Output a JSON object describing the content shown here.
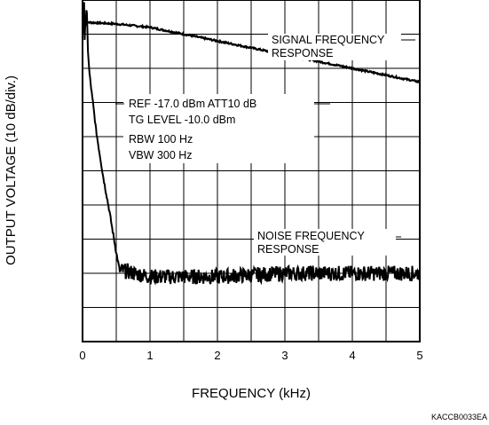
{
  "chart_data": {
    "type": "line",
    "xlabel": "FREQUENCY (kHz)",
    "ylabel": "OUTPUT VOLTAGE (10 dB/div.)",
    "x_ticks": [
      "0",
      "1",
      "2",
      "3",
      "4",
      "5"
    ],
    "xlim": [
      0,
      5
    ],
    "ylim_divisions": [
      0,
      10
    ],
    "grid": true,
    "settings_lines": [
      "REF -17.0 dBm  ATT10 dB",
      "TG LEVEL -10.0 dBm",
      "RBW  100 Hz",
      "VBW  300 Hz"
    ],
    "series": [
      {
        "name": "SIGNAL FREQUENCY RESPONSE",
        "label_lines": [
          "SIGNAL FREQUENCY",
          "RESPONSE"
        ],
        "x": [
          0,
          0.05,
          0.5,
          1.0,
          1.5,
          2.0,
          2.5,
          3.0,
          3.5,
          4.0,
          4.5,
          5.0
        ],
        "y": [
          9.3,
          9.35,
          9.3,
          9.2,
          9.0,
          8.8,
          8.6,
          8.4,
          8.2,
          8.0,
          7.8,
          7.6
        ]
      },
      {
        "name": "NOISE FREQUENCY RESPONSE",
        "label_lines": [
          "NOISE FREQUENCY",
          "RESPONSE"
        ],
        "x": [
          0,
          0.05,
          0.1,
          0.2,
          0.3,
          0.4,
          0.5,
          0.55,
          1.0,
          2.0,
          3.0,
          4.0,
          5.0
        ],
        "y": [
          9.3,
          9.5,
          7.9,
          6.2,
          4.9,
          3.8,
          2.6,
          2.1,
          1.9,
          1.9,
          2.0,
          2.0,
          2.0
        ]
      }
    ]
  },
  "doc_code": "KACCB0033EA"
}
